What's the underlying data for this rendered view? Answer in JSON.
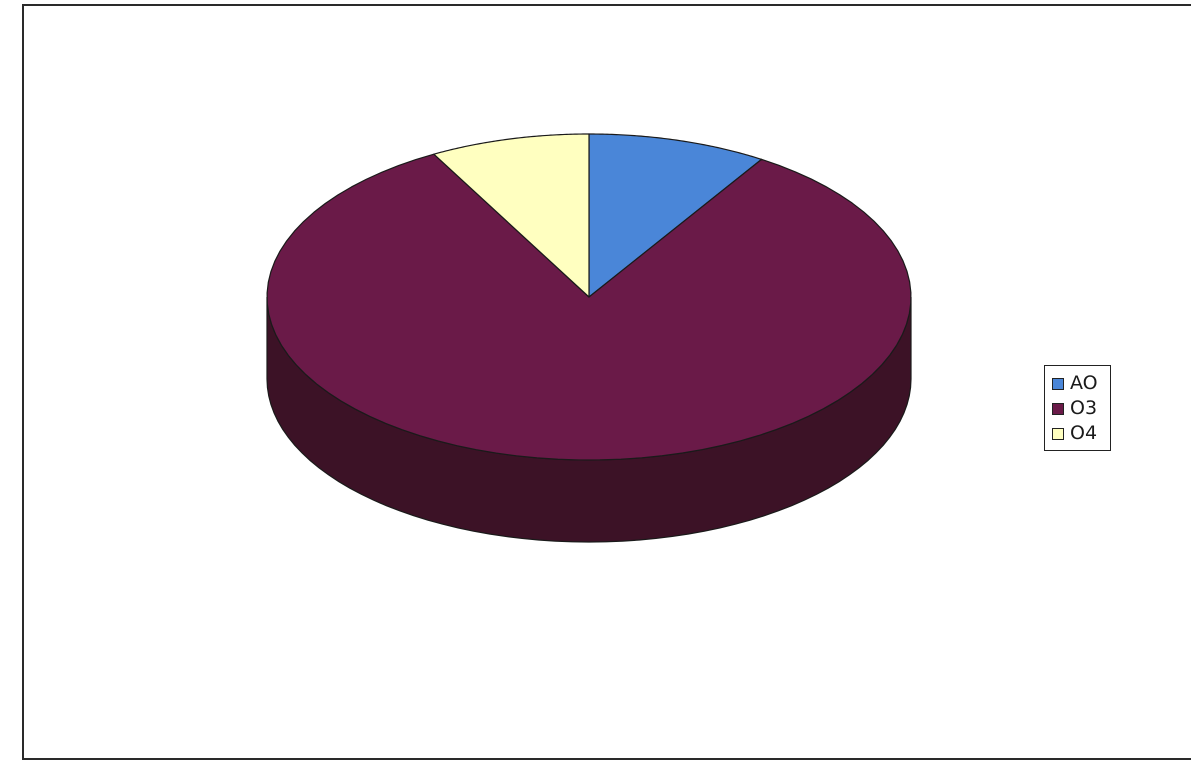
{
  "chart_data": {
    "type": "pie",
    "style": "3d",
    "title": "",
    "categories": [
      "AO",
      "O3",
      "O4"
    ],
    "values": [
      9,
      83,
      8
    ],
    "colors": [
      "#4a86d8",
      "#6a1a48",
      "#ffffc0"
    ],
    "side_colors": [
      "#25487a",
      "#3c1226",
      "#a8a878"
    ],
    "legend": {
      "placement": "right",
      "entries": [
        "AO",
        "O3",
        "O4"
      ]
    }
  }
}
